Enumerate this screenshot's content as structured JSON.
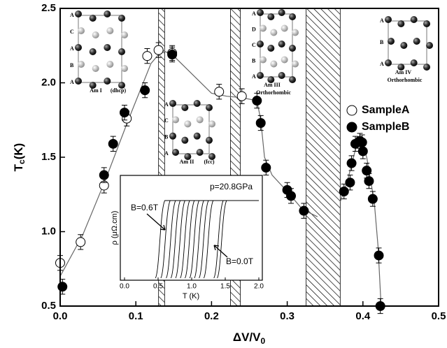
{
  "chart_data": {
    "type": "scatter",
    "x_label": {
      "main": "ΔV/V",
      "sub": "0"
    },
    "y_label": {
      "main": "T",
      "sub": "c",
      "rest": "(K)"
    },
    "xlim": [
      0,
      0.5
    ],
    "ylim": [
      0.5,
      2.5
    ],
    "xticks": [
      {
        "value": 0,
        "label": "0.0"
      },
      0.1,
      0.2,
      0.3,
      0.4,
      0.5
    ],
    "yticks": [
      0.5,
      {
        "value": 1,
        "label": "1.0"
      },
      1.5,
      {
        "value": 2,
        "label": "2.0"
      },
      2.5
    ],
    "legend": "right",
    "series": [
      {
        "name": "SampleA",
        "color": "#ffffff",
        "error": 0.05,
        "x": [
          0.0,
          0.027,
          0.058,
          0.088,
          0.115,
          0.13,
          0.148,
          0.21,
          0.24
        ],
        "values": [
          0.79,
          0.93,
          1.31,
          1.76,
          2.18,
          2.22,
          2.2,
          1.94,
          1.91
        ]
      },
      {
        "name": "SampleB",
        "color": "#000000",
        "error": 0.05,
        "x": [
          0.003,
          0.058,
          0.07,
          0.085,
          0.112,
          0.148,
          0.26,
          0.265,
          0.272,
          0.3,
          0.305,
          0.322,
          0.375,
          0.383,
          0.385,
          0.39,
          0.396,
          0.399,
          0.4,
          0.405,
          0.408,
          0.413,
          0.421,
          0.423
        ],
        "values": [
          0.63,
          1.38,
          1.59,
          1.8,
          1.95,
          2.19,
          1.88,
          1.73,
          1.43,
          1.28,
          1.24,
          1.14,
          1.27,
          1.33,
          1.46,
          1.59,
          1.61,
          1.6,
          1.54,
          1.41,
          1.34,
          1.22,
          0.84,
          0.5
        ]
      }
    ],
    "guide_line": {
      "color": "#666666",
      "x": [
        0.0,
        0.03,
        0.06,
        0.09,
        0.12,
        0.135,
        0.15,
        0.17,
        0.2,
        0.22,
        0.24,
        0.26,
        0.265,
        0.27,
        0.28,
        0.3,
        0.32,
        0.34,
        null,
        0.37,
        0.38,
        0.39,
        0.398,
        0.405,
        0.41,
        0.415,
        0.42,
        0.424
      ],
      "values": [
        0.7,
        0.98,
        1.35,
        1.75,
        2.13,
        2.22,
        2.18,
        2.08,
        1.93,
        1.91,
        1.9,
        1.88,
        1.75,
        1.5,
        1.38,
        1.27,
        1.15,
        1.1,
        null,
        1.2,
        1.35,
        1.55,
        1.62,
        1.5,
        1.35,
        1.2,
        0.9,
        0.5
      ]
    },
    "shaded_regions": [
      [
        0.13,
        0.138
      ],
      [
        0.225,
        0.238
      ],
      [
        0.325,
        0.37
      ]
    ],
    "structures": [
      {
        "name": "Am I",
        "note": "(dhcp)",
        "stacking": [
          "A",
          "C",
          "A",
          "B",
          "A"
        ]
      },
      {
        "name": "Am II",
        "note": "(fcc)",
        "stacking": [
          "A",
          "C",
          "B",
          "A"
        ]
      },
      {
        "name": "Am III",
        "note": "Orthorhombic",
        "stacking": [
          "A",
          "D",
          "C",
          "B",
          "A"
        ]
      },
      {
        "name": "Am IV",
        "note": "Orthorhombic",
        "stacking": [
          "A",
          "B",
          "A"
        ]
      }
    ],
    "inset": {
      "type": "line",
      "x_label": "T (K)",
      "y_label": "ρ (μΩ.cm)",
      "xlim": [
        0,
        2
      ],
      "xticks": [
        {
          "value": 0,
          "label": "0.0"
        },
        0.5,
        {
          "value": 1,
          "label": "1.0"
        },
        1.5,
        {
          "value": 2,
          "label": "2.0"
        }
      ],
      "pressure": "p=20.8GPa",
      "field_high": "B=0.6T",
      "field_low": "B=0.0T",
      "transition_T": [
        0.58,
        0.66,
        0.74,
        0.81,
        0.88,
        0.95,
        1.02,
        1.09,
        1.16,
        1.23,
        1.3,
        1.45,
        1.5
      ]
    }
  }
}
